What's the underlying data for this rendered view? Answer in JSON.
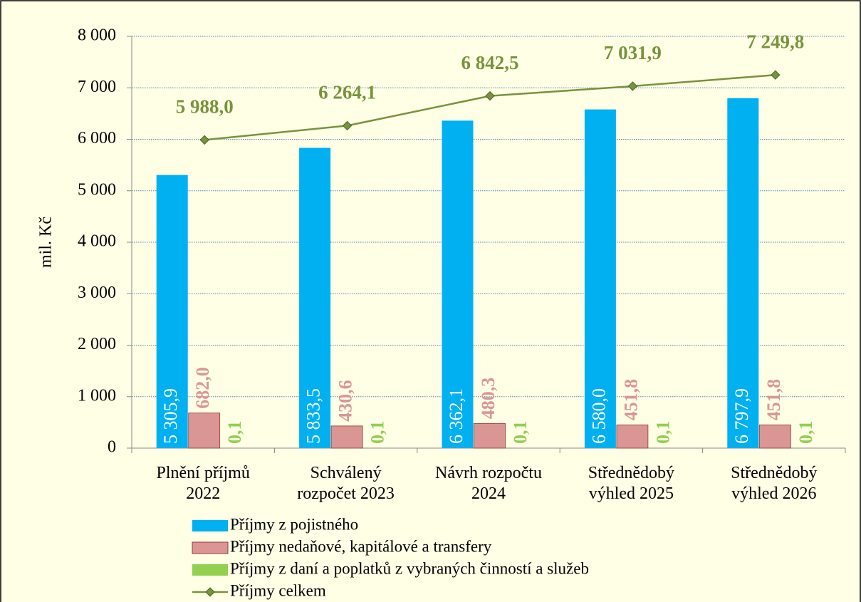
{
  "chart_data": {
    "type": "bar",
    "y_label": "mil. Kč",
    "categories": [
      "Plnění příjmů\n2022",
      "Schválený\nrozpočet 2023",
      "Návrh rozpočtu\n2024",
      "Střednědobý\nvýhled 2025",
      "Střednědobý\nvýhled 2026"
    ],
    "series": [
      {
        "name": "Příjmy z pojistného",
        "color": "#00b0f0",
        "label_color": "#ffffff",
        "values": [
          5305.9,
          5833.5,
          6362.1,
          6580.0,
          6797.9
        ],
        "value_labels": [
          "5 305,9",
          "5 833,5",
          "6 362,1",
          "6 580,0",
          "6 797,9"
        ]
      },
      {
        "name": "Příjmy nedaňové, kapitálové a transfery",
        "color": "#d99694",
        "label_color": "#d99694",
        "values": [
          682.0,
          430.6,
          480.3,
          451.8,
          451.8
        ],
        "value_labels": [
          "682,0",
          "430,6",
          "480,3",
          "451,8",
          "451,8"
        ]
      },
      {
        "name": "Příjmy z daní a poplatků z vybraných činností a služeb",
        "color": "#92d050",
        "label_color": "#92d050",
        "values": [
          0.1,
          0.1,
          0.1,
          0.1,
          0.1
        ],
        "value_labels": [
          "0,1",
          "0,1",
          "0,1",
          "0,1",
          "0,1"
        ]
      },
      {
        "name": "Příjmy celkem",
        "type": "line",
        "color": "#77933c",
        "values": [
          5988.0,
          6264.1,
          6842.5,
          7031.9,
          7249.8
        ],
        "value_labels": [
          "5 988,0",
          "6 264,1",
          "6 842,5",
          "7 031,9",
          "7 249,8"
        ]
      }
    ],
    "ylim": [
      0,
      8000
    ],
    "yticks": [
      0,
      {
        "value": 1000,
        "label": "1 000"
      },
      {
        "value": 2000,
        "label": "2 000"
      },
      {
        "value": 3000,
        "label": "3 000"
      },
      {
        "value": 4000,
        "label": "4 000"
      },
      {
        "value": 5000,
        "label": "5 000"
      },
      {
        "value": 6000,
        "label": "6 000"
      },
      {
        "value": 7000,
        "label": "7 000"
      },
      {
        "value": 8000,
        "label": "8 000"
      }
    ],
    "grid": true
  }
}
